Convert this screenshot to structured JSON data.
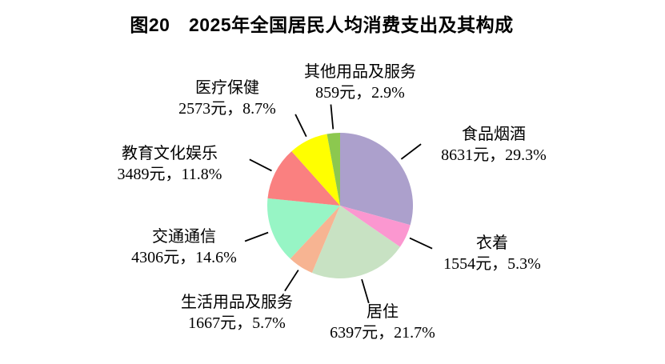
{
  "title": "图20　2025年全国居民人均消费支出及其构成",
  "colors": {
    "background": "#ffffff",
    "text": "#000000",
    "leader_line": "#000000"
  },
  "chart_data": {
    "type": "pie",
    "title": "图20　2025年全国居民人均消费支出及其构成",
    "unit": "元",
    "start_angle": "12-o-clock",
    "direction": "clockwise",
    "labels_position": "outside-with-leader-lines",
    "legend": "none",
    "slices": [
      {
        "id": "food-tobacco-alcohol",
        "name": "食品烟酒",
        "value_yuan": 8631,
        "percent": 29.3,
        "value_label": "8631元，29.3%",
        "color": "#aca0cc"
      },
      {
        "id": "clothing",
        "name": "衣着",
        "value_yuan": 1554,
        "percent": 5.3,
        "value_label": "1554元，5.3%",
        "color": "#fb97d0"
      },
      {
        "id": "housing",
        "name": "居住",
        "value_yuan": 6397,
        "percent": 21.7,
        "value_label": "6397元，21.7%",
        "color": "#c8e2c3"
      },
      {
        "id": "household-goods-services",
        "name": "生活用品及服务",
        "value_yuan": 1667,
        "percent": 5.7,
        "value_label": "1667元，5.7%",
        "color": "#f7b492"
      },
      {
        "id": "transport-communication",
        "name": "交通通信",
        "value_yuan": 4306,
        "percent": 14.6,
        "value_label": "4306元，14.6%",
        "color": "#97f5c5"
      },
      {
        "id": "education-culture-entertainment",
        "name": "教育文化娱乐",
        "value_yuan": 3489,
        "percent": 11.8,
        "value_label": "3489元，11.8%",
        "color": "#fa8080"
      },
      {
        "id": "healthcare",
        "name": "医疗保健",
        "value_yuan": 2573,
        "percent": 8.7,
        "value_label": "2573元，8.7%",
        "color": "#ffff00"
      },
      {
        "id": "other-goods-services",
        "name": "其他用品及服务",
        "value_yuan": 859,
        "percent": 2.9,
        "value_label": "859元，2.9%",
        "color": "#8cc84f"
      }
    ]
  }
}
